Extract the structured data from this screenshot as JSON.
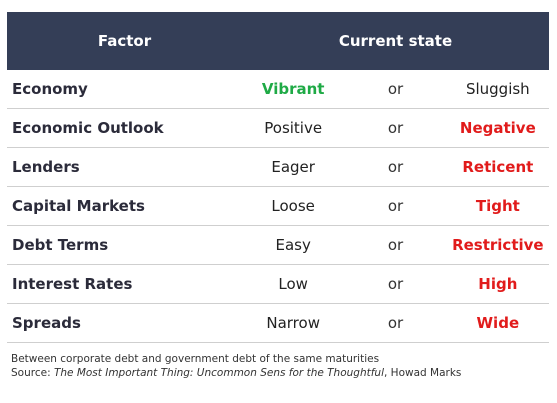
{
  "table": {
    "headers": {
      "factor": "Factor",
      "state": "Current state"
    },
    "rows": [
      {
        "factor": "Economy",
        "left": "Vibrant",
        "or": "or",
        "right": "Sluggish",
        "highlight": "left",
        "highlight_color": "#1faa46"
      },
      {
        "factor": "Economic Outlook",
        "left": "Positive",
        "or": "or",
        "right": "Negative",
        "highlight": "right",
        "highlight_color": "#e11b1b"
      },
      {
        "factor": "Lenders",
        "left": "Eager",
        "or": "or",
        "right": "Reticent",
        "highlight": "right",
        "highlight_color": "#e11b1b"
      },
      {
        "factor": "Capital Markets",
        "left": "Loose",
        "or": "or",
        "right": "Tight",
        "highlight": "right",
        "highlight_color": "#e11b1b"
      },
      {
        "factor": "Debt Terms",
        "left": "Easy",
        "or": "or",
        "right": "Restrictive",
        "highlight": "right",
        "highlight_color": "#e11b1b"
      },
      {
        "factor": "Interest Rates",
        "left": "Low",
        "or": "or",
        "right": "High",
        "highlight": "right",
        "highlight_color": "#e11b1b"
      },
      {
        "factor": "Spreads",
        "left": "Narrow",
        "or": "or",
        "right": "Wide",
        "highlight": "right",
        "highlight_color": "#e11b1b"
      }
    ]
  },
  "notes": {
    "line1": "Between corporate debt and government debt of the same maturities",
    "source_prefix": "Source: ",
    "source_title": "The Most Important Thing: Uncommon Sens for the Thoughtful",
    "source_suffix": ", Howad Marks"
  },
  "colors": {
    "header_bg": "#343e57",
    "green": "#1faa46",
    "red": "#e11b1b"
  }
}
